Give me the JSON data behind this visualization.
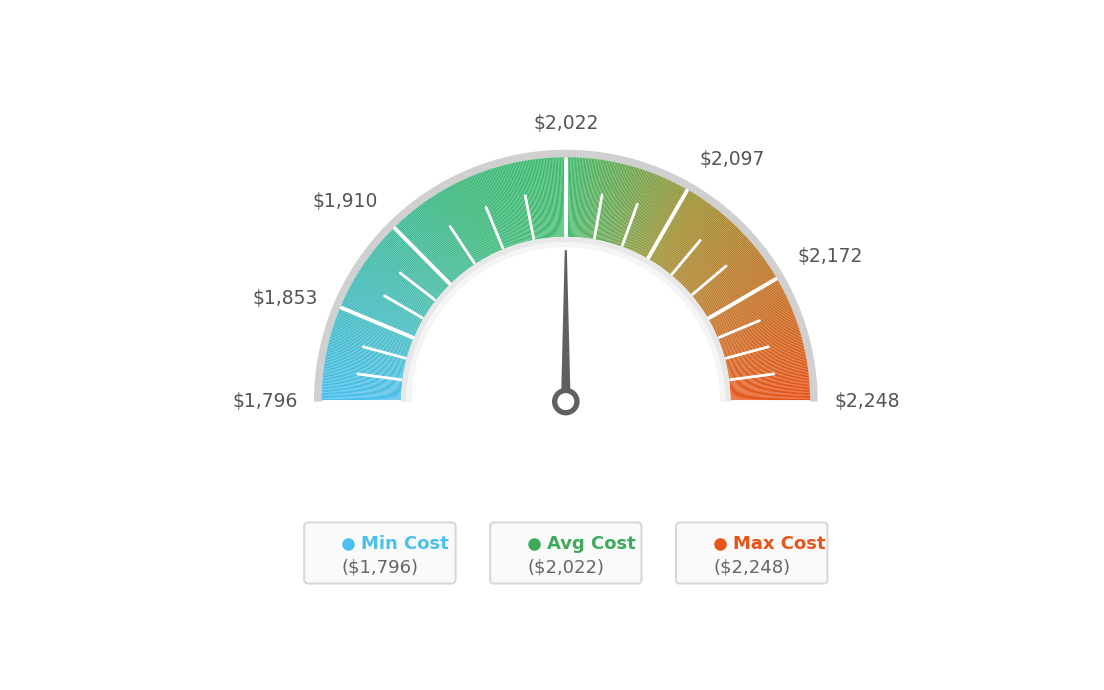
{
  "min_val": 1796,
  "avg_val": 2022,
  "max_val": 2248,
  "tick_labels": [
    "$1,796",
    "$1,853",
    "$1,910",
    "$2,022",
    "$2,097",
    "$2,172",
    "$2,248"
  ],
  "tick_values": [
    1796,
    1853,
    1910,
    2022,
    2097,
    2172,
    2248
  ],
  "min_color": "#4BBFED",
  "avg_color": "#3DAA5C",
  "max_color": "#E8541A",
  "legend_labels": [
    "Min Cost",
    "Avg Cost",
    "Max Cost"
  ],
  "legend_values": [
    "($1,796)",
    "($2,022)",
    "($2,248)"
  ],
  "bg_color": "#ffffff",
  "needle_color": "#606060"
}
